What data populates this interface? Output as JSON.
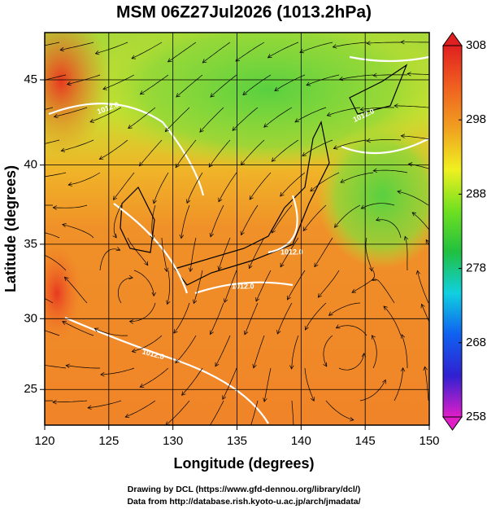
{
  "chart_data": {
    "type": "map",
    "title": "MSM 06Z27Jul2026 (1013.2hPa)",
    "x_label": "Longitude (degrees)",
    "y_label": "Latitude  (degrees)",
    "projection": "mercator",
    "xlim": [
      120,
      150
    ],
    "xticks": [
      120,
      125,
      130,
      135,
      140,
      145,
      150
    ],
    "ylim": [
      22.4,
      47.6
    ],
    "yticks": [
      25,
      30,
      35,
      40,
      45
    ],
    "grid": true,
    "contour_labels": [
      "1012.0",
      "1012.0",
      "1012.0",
      "1012.0",
      "1012.0"
    ],
    "colorbar": {
      "lim": [
        258,
        308
      ],
      "ticks": [
        258,
        268,
        278,
        288,
        298,
        308
      ],
      "colors": [
        "#e01ec8",
        "#3020d0",
        "#1060f0",
        "#10d0e0",
        "#20c040",
        "#70e020",
        "#f0f020",
        "#f0a020",
        "#f06020",
        "#e02020"
      ]
    },
    "footer": [
      "Drawing by DCL (https://www.gfd-dennou.org/library/dcl/)",
      "Data from http://database.rish.kyoto-u.ac.jp/arch/jmadata/"
    ]
  }
}
